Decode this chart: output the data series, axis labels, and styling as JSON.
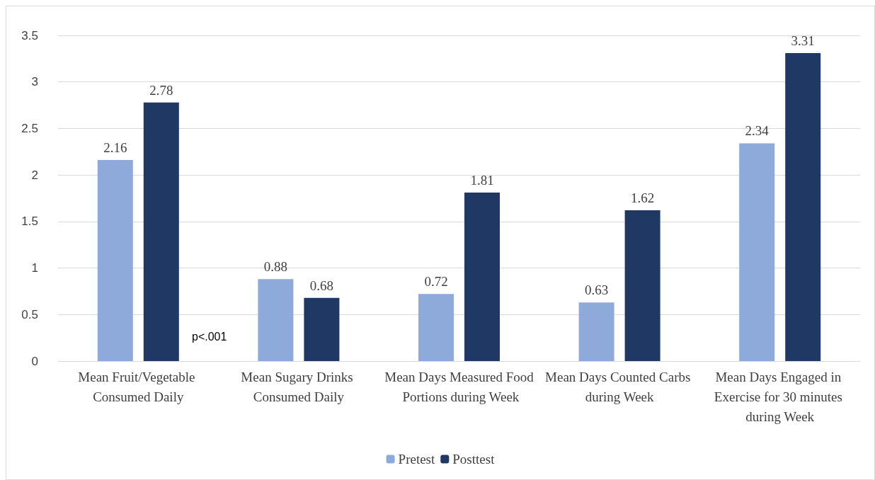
{
  "chart_data": {
    "type": "bar",
    "categories": [
      "Mean Fruit/Vegetable Consumed Daily",
      "Mean Sugary Drinks Consumed Daily",
      "Mean Days Measured Food Portions during Week",
      "Mean Days Counted Carbs during Week",
      "Mean Days Engaged in Exercise for 30 minutes during Week"
    ],
    "series": [
      {
        "name": "Pretest",
        "color": "#8eaadb",
        "values": [
          2.16,
          0.88,
          0.72,
          0.63,
          2.34
        ]
      },
      {
        "name": "Posttest",
        "color": "#1f3864",
        "values": [
          2.78,
          0.68,
          1.81,
          1.62,
          3.31
        ]
      }
    ],
    "ylim": [
      0,
      3.5
    ],
    "yticks": [
      0,
      0.5,
      1,
      1.5,
      2,
      2.5,
      3,
      3.5
    ],
    "grid": "y",
    "legend": "bottom",
    "data_labels": true,
    "annotations": [
      "p<.001"
    ]
  }
}
